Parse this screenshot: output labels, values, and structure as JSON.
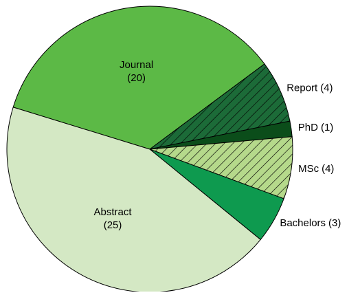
{
  "chart_data": {
    "type": "pie",
    "categories": [
      "Journal",
      "Report",
      "PhD",
      "MSc",
      "Bachelors",
      "Abstract"
    ],
    "values": [
      20,
      4,
      1,
      4,
      3,
      25
    ],
    "value_labels": [
      "(20)",
      "(4)",
      "(1)",
      "(4)",
      "(3)",
      "(25)"
    ],
    "colors": [
      "#5cb946",
      "#1c6b38",
      "#0b4d1a",
      "#b5d98b",
      "#0e9a4f",
      "#d4e8c4"
    ],
    "hatch": [
      false,
      true,
      false,
      true,
      false,
      false
    ],
    "inside_labels": [
      true,
      false,
      false,
      false,
      false,
      true
    ]
  }
}
